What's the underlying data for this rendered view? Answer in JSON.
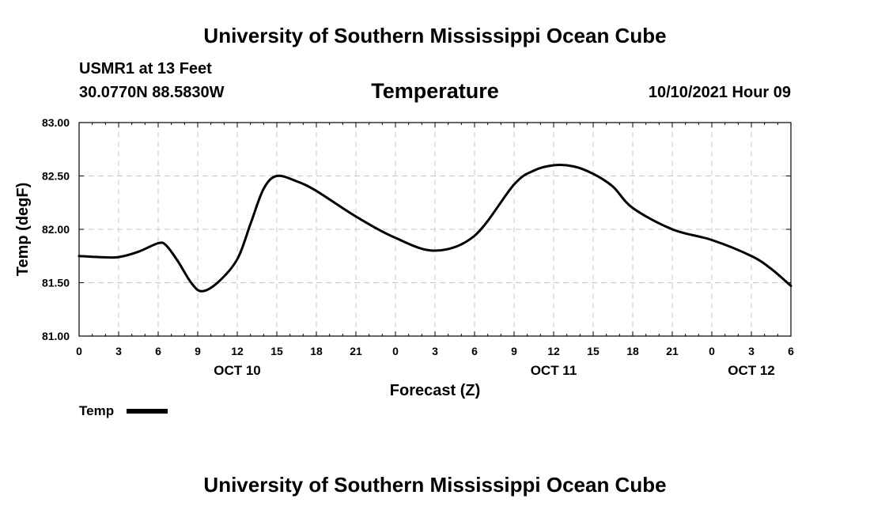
{
  "header": {
    "title": "University of Southern Mississippi Ocean Cube",
    "station": "USMR1 at 13 Feet",
    "coords": "30.0770N  88.5830W",
    "variable": "Temperature",
    "datetime": "10/10/2021 Hour 09"
  },
  "footer": {
    "title": "University of Southern Mississippi Ocean Cube"
  },
  "chart_data": {
    "type": "line",
    "title": "Temperature",
    "xlabel": "Forecast (Z)",
    "ylabel": "Temp (degF)",
    "ylim": [
      81.0,
      83.0
    ],
    "yticks": [
      "81.00",
      "81.50",
      "82.00",
      "82.50",
      "83.00"
    ],
    "xlim": [
      0,
      54
    ],
    "xticks": [
      "0",
      "3",
      "6",
      "9",
      "12",
      "15",
      "18",
      "21",
      "0",
      "3",
      "6",
      "9",
      "12",
      "15",
      "18",
      "21",
      "0",
      "3",
      "6"
    ],
    "date_labels": [
      {
        "label": "OCT 10",
        "hour": 12
      },
      {
        "label": "OCT 11",
        "hour": 36
      },
      {
        "label": "OCT 12",
        "hour": 51
      }
    ],
    "grid": true,
    "legend": {
      "position": "bottom-left",
      "label": "Temp"
    },
    "series": [
      {
        "name": "Temp",
        "color": "#000000",
        "x": [
          0,
          1.5,
          3,
          4.5,
          6,
          6.6,
          7.5,
          8.5,
          9.3,
          10.5,
          12,
          13,
          14,
          15,
          16.5,
          18,
          21,
          24,
          27,
          30,
          33,
          34.5,
          36,
          37.5,
          39,
          40.5,
          42,
          45,
          48,
          51,
          52.5,
          54
        ],
        "values": [
          81.75,
          81.74,
          81.74,
          81.79,
          81.87,
          81.85,
          81.7,
          81.5,
          81.42,
          81.5,
          81.72,
          82.05,
          82.38,
          82.5,
          82.45,
          82.36,
          82.12,
          81.92,
          81.8,
          81.94,
          82.42,
          82.55,
          82.6,
          82.59,
          82.52,
          82.4,
          82.2,
          82.0,
          81.9,
          81.75,
          81.63,
          81.47
        ]
      }
    ]
  }
}
